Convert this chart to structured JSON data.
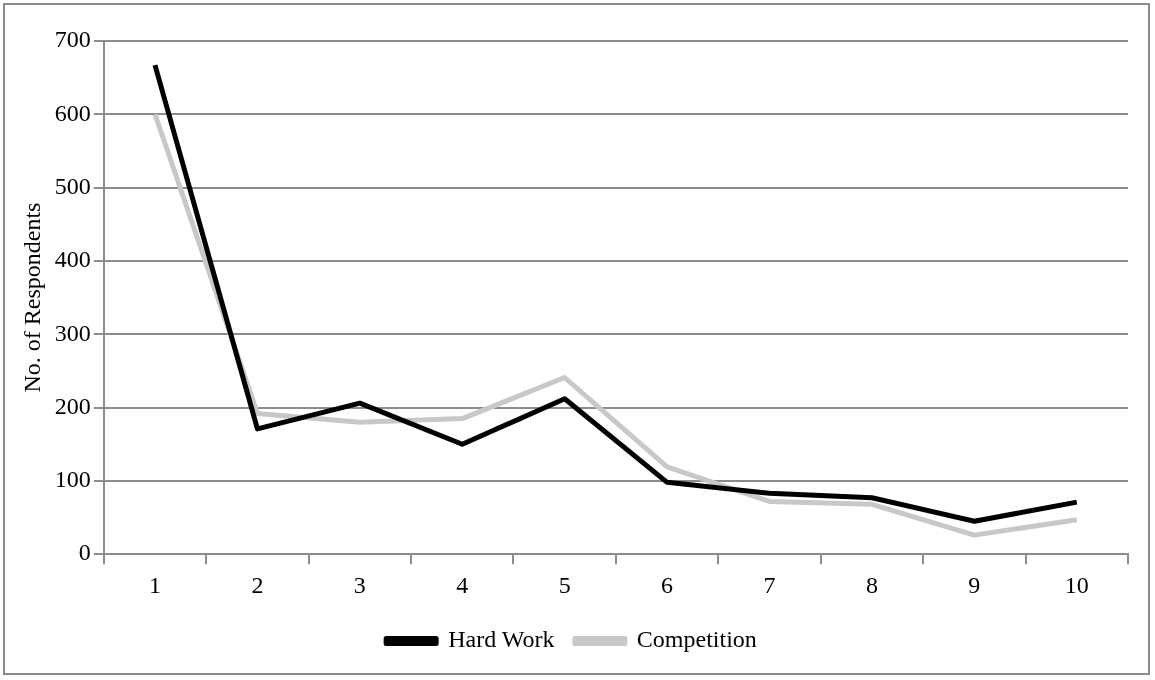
{
  "chart_data": {
    "type": "line",
    "ylabel": "No. of Respondents",
    "categories": [
      "1",
      "2",
      "3",
      "4",
      "5",
      "6",
      "7",
      "8",
      "9",
      "10"
    ],
    "series": [
      {
        "name": "Hard Work",
        "color": "#000000",
        "values": [
          667,
          171,
          206,
          150,
          212,
          98,
          83,
          77,
          45,
          71
        ]
      },
      {
        "name": "Competition",
        "color": "#c8c8c8",
        "values": [
          600,
          192,
          180,
          185,
          241,
          119,
          72,
          68,
          26,
          47
        ]
      }
    ],
    "ylim": [
      0,
      700
    ],
    "yticks": [
      0,
      100,
      200,
      300,
      400,
      500,
      600,
      700
    ],
    "grid": "y",
    "legend": "bottom",
    "marker": "none",
    "line_style": "solid"
  }
}
